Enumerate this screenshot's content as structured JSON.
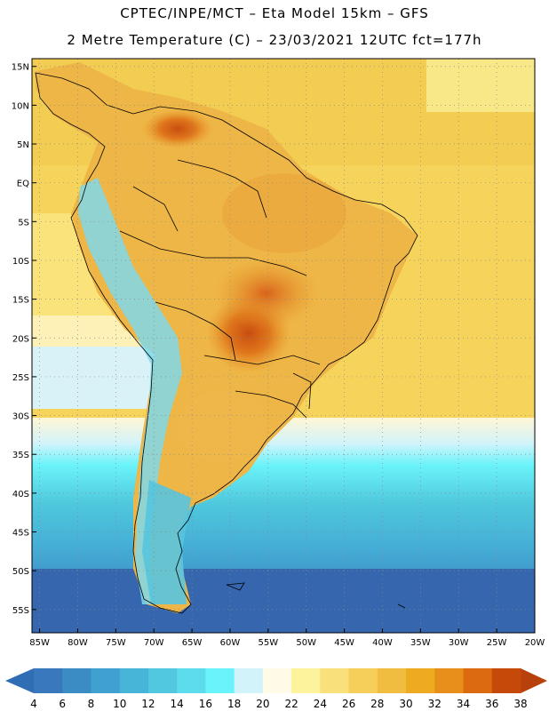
{
  "header": {
    "line1": "CPTEC/INPE/MCT –  Eta Model 15km – GFS",
    "line2": "2 Metre Temperature (C) – 23/03/2021 12UTC fct=177h"
  },
  "map": {
    "lon_range": [
      -86,
      -20
    ],
    "lat_range": [
      -58,
      16
    ],
    "lat_ticks": [
      {
        "value": 15,
        "label": "15N"
      },
      {
        "value": 10,
        "label": "10N"
      },
      {
        "value": 5,
        "label": "5N"
      },
      {
        "value": 0,
        "label": "EQ"
      },
      {
        "value": -5,
        "label": "5S"
      },
      {
        "value": -10,
        "label": "10S"
      },
      {
        "value": -15,
        "label": "15S"
      },
      {
        "value": -20,
        "label": "20S"
      },
      {
        "value": -25,
        "label": "25S"
      },
      {
        "value": -30,
        "label": "30S"
      },
      {
        "value": -35,
        "label": "35S"
      },
      {
        "value": -40,
        "label": "40S"
      },
      {
        "value": -45,
        "label": "45S"
      },
      {
        "value": -50,
        "label": "50S"
      },
      {
        "value": -55,
        "label": "55S"
      }
    ],
    "lon_ticks": [
      {
        "value": -85,
        "label": "85W"
      },
      {
        "value": -80,
        "label": "80W"
      },
      {
        "value": -75,
        "label": "75W"
      },
      {
        "value": -70,
        "label": "70W"
      },
      {
        "value": -65,
        "label": "65W"
      },
      {
        "value": -60,
        "label": "60W"
      },
      {
        "value": -55,
        "label": "55W"
      },
      {
        "value": -50,
        "label": "50W"
      },
      {
        "value": -45,
        "label": "45W"
      },
      {
        "value": -40,
        "label": "40W"
      },
      {
        "value": -35,
        "label": "35W"
      },
      {
        "value": -30,
        "label": "30W"
      },
      {
        "value": -25,
        "label": "25W"
      },
      {
        "value": -20,
        "label": "20W"
      }
    ]
  },
  "colorbar": {
    "labels": [
      "4",
      "6",
      "8",
      "10",
      "12",
      "14",
      "16",
      "18",
      "20",
      "22",
      "24",
      "26",
      "28",
      "30",
      "32",
      "34",
      "36",
      "38"
    ],
    "low_color": "#2f6eb5",
    "high_color": "#b8400a",
    "colors": [
      "#3a78bd",
      "#3b8cc5",
      "#40a0cf",
      "#46b5d8",
      "#52c8e0",
      "#5cdcec",
      "#6af3fa",
      "#d2f3fa",
      "#fffbe6",
      "#fdf39c",
      "#f9e07a",
      "#f5cf5a",
      "#f0bd40",
      "#eeaa20",
      "#e78f1a",
      "#dc6a10",
      "#c54a0a"
    ]
  }
}
